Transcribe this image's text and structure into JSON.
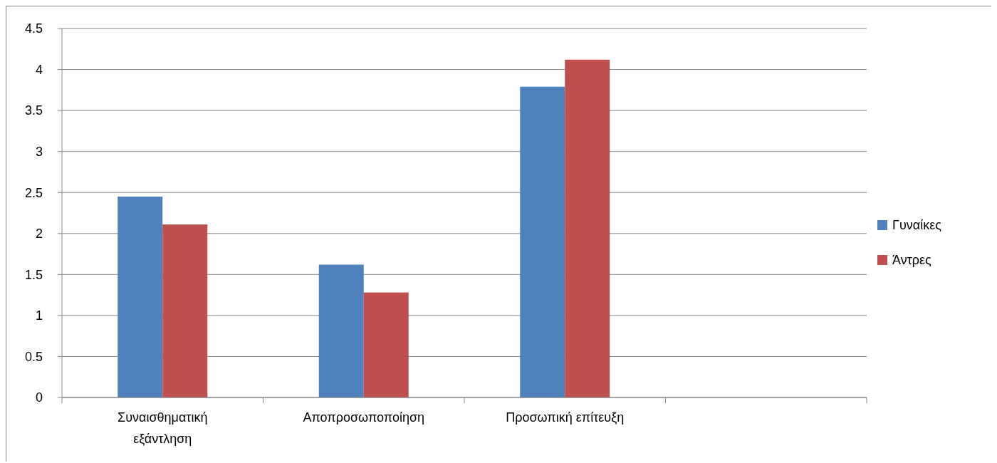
{
  "chart_data": {
    "type": "bar",
    "categories": [
      "Συναισθηματική εξάντληση",
      "Αποπροσωποποίηση",
      "Προσωπική επίτευξη",
      null
    ],
    "series": [
      {
        "name": "Γυναίκες",
        "color": "#4f81bd",
        "values": [
          2.45,
          1.62,
          3.79,
          null
        ]
      },
      {
        "name": "Άντρες",
        "color": "#c0504d",
        "values": [
          2.11,
          1.28,
          4.12,
          null
        ]
      }
    ],
    "ylim": [
      0,
      4.5
    ],
    "yticks": [
      0,
      0.5,
      1,
      1.5,
      2,
      2.5,
      3,
      3.5,
      4,
      4.5
    ],
    "grid": "y",
    "legend": "right"
  }
}
